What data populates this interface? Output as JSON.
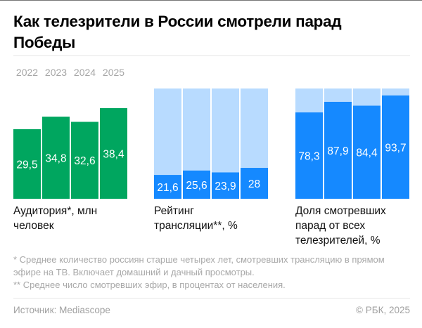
{
  "title": "Как телезрители в России смотрели парад Победы",
  "chart_data": [
    {
      "type": "bar",
      "categories": [
        "2022",
        "2023",
        "2024",
        "2025"
      ],
      "values": [
        29.5,
        34.8,
        32.6,
        38.4
      ],
      "value_labels": [
        "29,5",
        "34,8",
        "32,6",
        "38,4"
      ],
      "label": "Аудитория*, млн человек",
      "color": "#00a65f"
    },
    {
      "type": "bar",
      "stacked_to": 100,
      "categories": [
        "2022",
        "2023",
        "2024",
        "2025"
      ],
      "values": [
        21.6,
        25.6,
        23.9,
        28
      ],
      "value_labels": [
        "21,6",
        "25,6",
        "23,9",
        "28"
      ],
      "label": "Рейтинг трансляции**, %",
      "color": "#1589ff",
      "background_color": "#b8dbff"
    },
    {
      "type": "bar",
      "stacked_to": 100,
      "categories": [
        "2022",
        "2023",
        "2024",
        "2025"
      ],
      "values": [
        78.3,
        87.9,
        84.4,
        93.7
      ],
      "value_labels": [
        "78,3",
        "87,9",
        "84,4",
        "93,7"
      ],
      "label": "Доля смотревших парад от всех телезрителей, %",
      "color": "#1589ff",
      "background_color": "#b8dbff"
    }
  ],
  "notes": [
    "* Среднее количество россиян старше четырех лет, смотревших трансляцию в прямом эфире на ТВ. Включает домашний и дачный просмотры.",
    "** Среднее число смотревших эфир, в процентах от населения."
  ],
  "source": "Источник: Mediascope",
  "copyright": "© РБК, 2025"
}
